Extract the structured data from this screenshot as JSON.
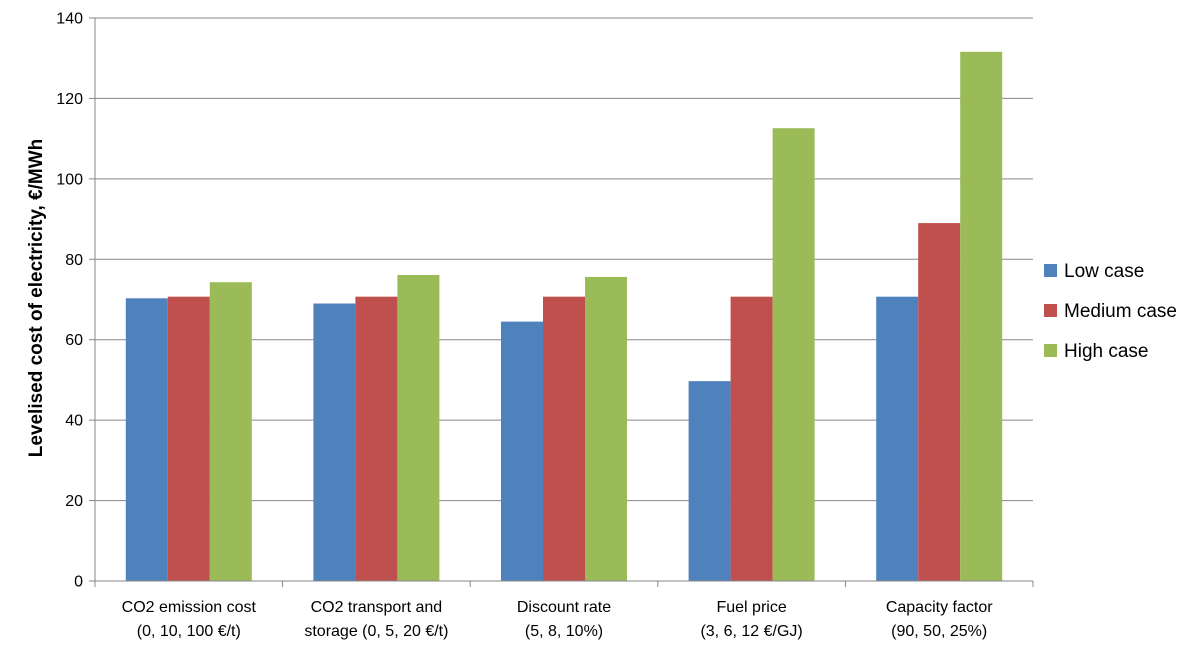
{
  "chart_data": {
    "type": "bar",
    "title": "",
    "xlabel": "",
    "ylabel": "Levelised cost of electricity, €/MWh",
    "ylim": [
      0,
      140
    ],
    "yticks": [
      0,
      20,
      40,
      60,
      80,
      100,
      120,
      140
    ],
    "grid": true,
    "legend_position": "right",
    "categories": [
      [
        "CO2 emission cost",
        "(0, 10, 100 €/t)"
      ],
      [
        "CO2 transport and",
        "storage (0, 5, 20 €/t)"
      ],
      [
        "Discount rate",
        "(5, 8, 10%)"
      ],
      [
        "Fuel price",
        "(3, 6, 12 €/GJ)"
      ],
      [
        "Capacity factor",
        "(90, 50, 25%)"
      ]
    ],
    "series": [
      {
        "name": "Low case",
        "color": "#4F81BD",
        "values": [
          70.3,
          69,
          64.5,
          49.7,
          70.7
        ]
      },
      {
        "name": "Medium case",
        "color": "#C0504D",
        "values": [
          70.7,
          70.7,
          70.7,
          70.7,
          89
        ]
      },
      {
        "name": "High case",
        "color": "#9BBB59",
        "values": [
          74.3,
          76.1,
          75.6,
          112.6,
          131.6
        ]
      }
    ]
  }
}
